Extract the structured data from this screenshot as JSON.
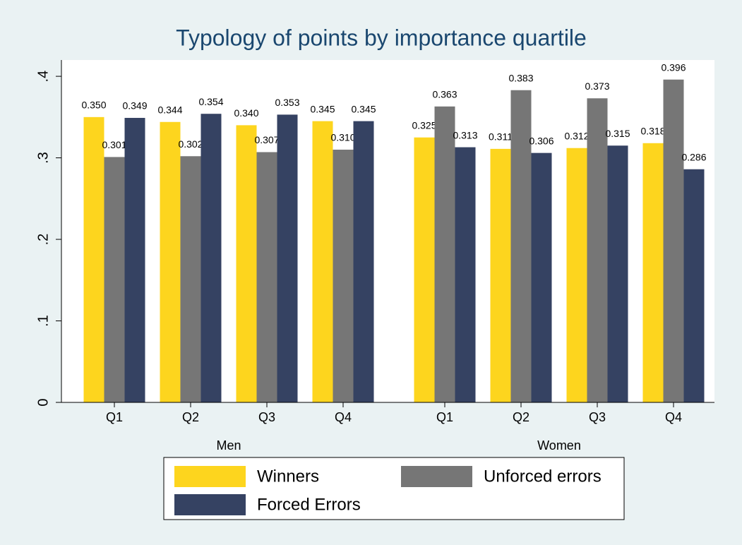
{
  "chart_data": {
    "type": "bar",
    "title": "Typology of points by importance quartile",
    "series": [
      {
        "name": "Winners",
        "color": "#fdd51e"
      },
      {
        "name": "Unforced errors",
        "color": "#767676"
      },
      {
        "name": "Forced Errors",
        "color": "#354262"
      }
    ],
    "groups": [
      {
        "label": "Men",
        "categories": [
          "Q1",
          "Q2",
          "Q3",
          "Q4"
        ],
        "series": [
          {
            "values": [
              0.35,
              0.344,
              0.34,
              0.345
            ],
            "value_labels": [
              "0.350",
              "0.344",
              "0.340",
              "0.345"
            ]
          },
          {
            "values": [
              0.301,
              0.302,
              0.307,
              0.31
            ],
            "value_labels": [
              "0.301",
              "0.302",
              "0.307",
              "0.310"
            ]
          },
          {
            "values": [
              0.349,
              0.354,
              0.353,
              0.345
            ],
            "value_labels": [
              "0.349",
              "0.354",
              "0.353",
              "0.345"
            ]
          }
        ]
      },
      {
        "label": "Women",
        "categories": [
          "Q1",
          "Q2",
          "Q3",
          "Q4"
        ],
        "series": [
          {
            "values": [
              0.325,
              0.311,
              0.312,
              0.318
            ],
            "value_labels": [
              "0.325",
              "0.311",
              "0.312",
              "0.318"
            ]
          },
          {
            "values": [
              0.363,
              0.383,
              0.373,
              0.396
            ],
            "value_labels": [
              "0.363",
              "0.383",
              "0.373",
              "0.396"
            ]
          },
          {
            "values": [
              0.313,
              0.306,
              0.315,
              0.286
            ],
            "value_labels": [
              "0.313",
              "0.306",
              "0.315",
              "0.286"
            ]
          }
        ]
      }
    ],
    "ylim": [
      0,
      0.42
    ],
    "yticks": [
      0,
      {
        "value": 0.1,
        "label": ".1"
      },
      {
        "value": 0.2,
        "label": ".2"
      },
      {
        "value": 0.3,
        "label": ".3"
      },
      {
        "value": 0.4,
        "label": ".4"
      }
    ],
    "grid": false
  }
}
